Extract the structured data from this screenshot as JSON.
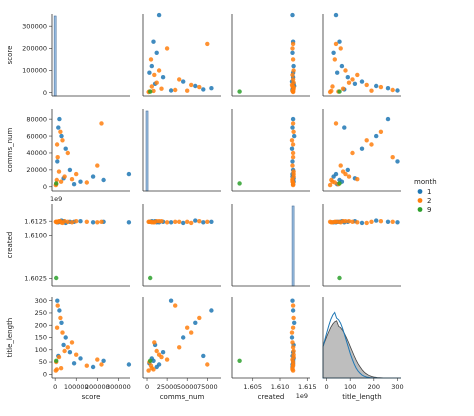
{
  "chart_data": {
    "type": "scatter",
    "variables": [
      "score",
      "comms_num",
      "created",
      "title_length"
    ],
    "axis_labels": {
      "score": "score",
      "comms_num": "comms_num",
      "created": "created",
      "title_length": "title_length"
    },
    "offset_label": "1e9",
    "legend": {
      "title": "month",
      "placement": "right",
      "entries": [
        {
          "label": "1",
          "color": "#1f77b4"
        },
        {
          "label": "2",
          "color": "#ff7f0e"
        },
        {
          "label": "9",
          "color": "#2ca02c"
        }
      ]
    },
    "ticks": {
      "score": {
        "values": [
          0,
          100000,
          200000,
          300000
        ],
        "labels": [
          "0",
          "100000",
          "200000",
          "300000"
        ]
      },
      "comms_num": {
        "values": [
          0,
          20000,
          40000,
          60000,
          80000
        ],
        "labels": [
          "0",
          "20000",
          "40000",
          "60000",
          "80000"
        ]
      },
      "comms_num_x": {
        "values": [
          0,
          25000,
          50000,
          75000
        ],
        "labels": [
          "0",
          "25000",
          "50000",
          "75000"
        ]
      },
      "created": {
        "values": [
          1.6025,
          1.61,
          1.6125
        ],
        "labels": [
          "1.6025",
          "1.6100",
          "1.6125"
        ]
      },
      "created_x": {
        "values": [
          1.605,
          1.61,
          1.615
        ],
        "labels": [
          "1.605",
          "1.610",
          "1.615"
        ]
      },
      "title_length": {
        "values": [
          0,
          50,
          100,
          150,
          200,
          250,
          300
        ],
        "labels": [
          "0",
          "50",
          "100",
          "150",
          "200",
          "250",
          "300"
        ]
      },
      "title_length_x": {
        "values": [
          0,
          100,
          200,
          300
        ],
        "labels": [
          "0",
          "100",
          "200",
          "300"
        ]
      }
    },
    "ranges": {
      "score": [
        -15000,
        355000
      ],
      "comms_num": [
        -5000,
        92000
      ],
      "created": [
        1.6012,
        1.6155
      ],
      "title_length": [
        -15,
        315
      ]
    },
    "points": [
      [
        350000,
        15000,
        1.6123,
        40,
        1
      ],
      [
        230000,
        8000,
        1.6124,
        55,
        1
      ],
      [
        180000,
        12000,
        1.6123,
        30,
        1
      ],
      [
        120000,
        6000,
        1.6125,
        65,
        1
      ],
      [
        70000,
        20000,
        1.6124,
        90,
        1
      ],
      [
        50000,
        45000,
        1.6122,
        150,
        1
      ],
      [
        30000,
        60000,
        1.6126,
        210,
        1
      ],
      [
        20000,
        80000,
        1.6124,
        260,
        1
      ],
      [
        10000,
        30000,
        1.6123,
        300,
        1
      ],
      [
        40000,
        10000,
        1.6125,
        120,
        1
      ],
      [
        90000,
        3000,
        1.6124,
        45,
        1
      ],
      [
        15000,
        70000,
        1.6123,
        75,
        1
      ],
      [
        220000,
        75000,
        1.6124,
        40,
        2
      ],
      [
        200000,
        25000,
        1.6123,
        60,
        2
      ],
      [
        150000,
        5000,
        1.6124,
        35,
        2
      ],
      [
        100000,
        15000,
        1.6125,
        80,
        2
      ],
      [
        60000,
        40000,
        1.6124,
        110,
        2
      ],
      [
        35000,
        55000,
        1.6122,
        170,
        2
      ],
      [
        25000,
        65000,
        1.6125,
        230,
        2
      ],
      [
        12000,
        35000,
        1.6124,
        280,
        2
      ],
      [
        8000,
        8000,
        1.6123,
        20,
        2
      ],
      [
        5000,
        3000,
        1.6124,
        50,
        2
      ],
      [
        45000,
        12000,
        1.6125,
        95,
        2
      ],
      [
        80000,
        9000,
        1.6123,
        130,
        2
      ],
      [
        3000,
        2000,
        1.6124,
        15,
        2
      ],
      [
        18000,
        18000,
        1.6125,
        70,
        2
      ],
      [
        9000,
        50000,
        1.6124,
        190,
        2
      ],
      [
        28000,
        6000,
        1.6123,
        25,
        2
      ],
      [
        5000,
        4000,
        1.6026,
        55,
        9
      ]
    ]
  }
}
